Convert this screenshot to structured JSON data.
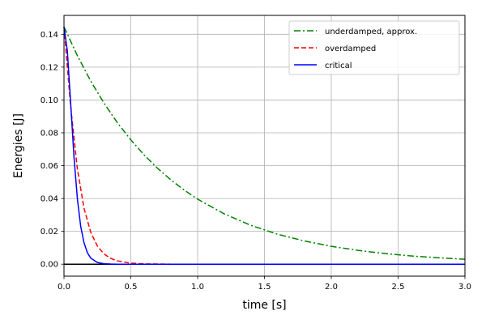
{
  "chart_data": {
    "type": "line",
    "title": "",
    "xlabel": "time [s]",
    "ylabel": "Energies [J]",
    "xlim": [
      0,
      3.0
    ],
    "ylim": [
      -0.0073,
      0.1515
    ],
    "grid": true,
    "legend_position": "top-right",
    "x_ticks": [
      0.0,
      0.5,
      1.0,
      1.5,
      2.0,
      2.5,
      3.0
    ],
    "x_tick_labels": [
      "0.0",
      "0.5",
      "1.0",
      "1.5",
      "2.0",
      "2.5",
      "3.0"
    ],
    "y_ticks": [
      0.0,
      0.02,
      0.04,
      0.06,
      0.08,
      0.1,
      0.12,
      0.14
    ],
    "y_tick_labels": [
      "0.00",
      "0.02",
      "0.04",
      "0.06",
      "0.08",
      "0.10",
      "0.12",
      "0.14"
    ],
    "zero_line": true,
    "series": [
      {
        "name": "underdamped, approx.",
        "color": "#008000",
        "line_style": "dash-dot",
        "x": [
          0,
          0.1,
          0.2,
          0.3,
          0.4,
          0.5,
          0.6,
          0.7,
          0.8,
          0.9,
          1.0,
          1.2,
          1.4,
          1.6,
          1.8,
          2.0,
          2.2,
          2.4,
          2.6,
          2.8,
          3.0
        ],
        "values": [
          0.1445,
          0.127,
          0.1115,
          0.098,
          0.0861,
          0.0757,
          0.0665,
          0.0584,
          0.0513,
          0.0451,
          0.0396,
          0.0306,
          0.0236,
          0.0182,
          0.0141,
          0.0109,
          0.0084,
          0.0065,
          0.005,
          0.0039,
          0.003
        ]
      },
      {
        "name": "overdamped",
        "color": "#ff0000",
        "line_style": "dashed",
        "x": [
          0,
          0.05,
          0.1,
          0.15,
          0.2,
          0.25,
          0.3,
          0.35,
          0.4,
          0.5,
          0.6,
          0.7,
          0.8,
          1.0,
          1.5,
          2.0,
          2.5,
          3.0
        ],
        "values": [
          0.1445,
          0.096,
          0.058,
          0.034,
          0.0195,
          0.011,
          0.0062,
          0.0035,
          0.002,
          0.0006,
          0.0002,
          0.0001,
          0.0,
          0.0,
          0.0,
          0.0,
          0.0,
          0.0
        ]
      },
      {
        "name": "critical",
        "color": "#0000ff",
        "line_style": "solid",
        "x": [
          0,
          0.025,
          0.05,
          0.075,
          0.1,
          0.125,
          0.15,
          0.175,
          0.2,
          0.25,
          0.3,
          0.35,
          0.4,
          0.5,
          1.0,
          1.5,
          2.0,
          2.5,
          3.0
        ],
        "values": [
          0.1445,
          0.13,
          0.098,
          0.065,
          0.04,
          0.023,
          0.013,
          0.007,
          0.0037,
          0.001,
          0.0003,
          0.0001,
          0.0,
          0.0,
          0.0,
          0.0,
          0.0,
          0.0,
          0.0
        ]
      }
    ]
  }
}
